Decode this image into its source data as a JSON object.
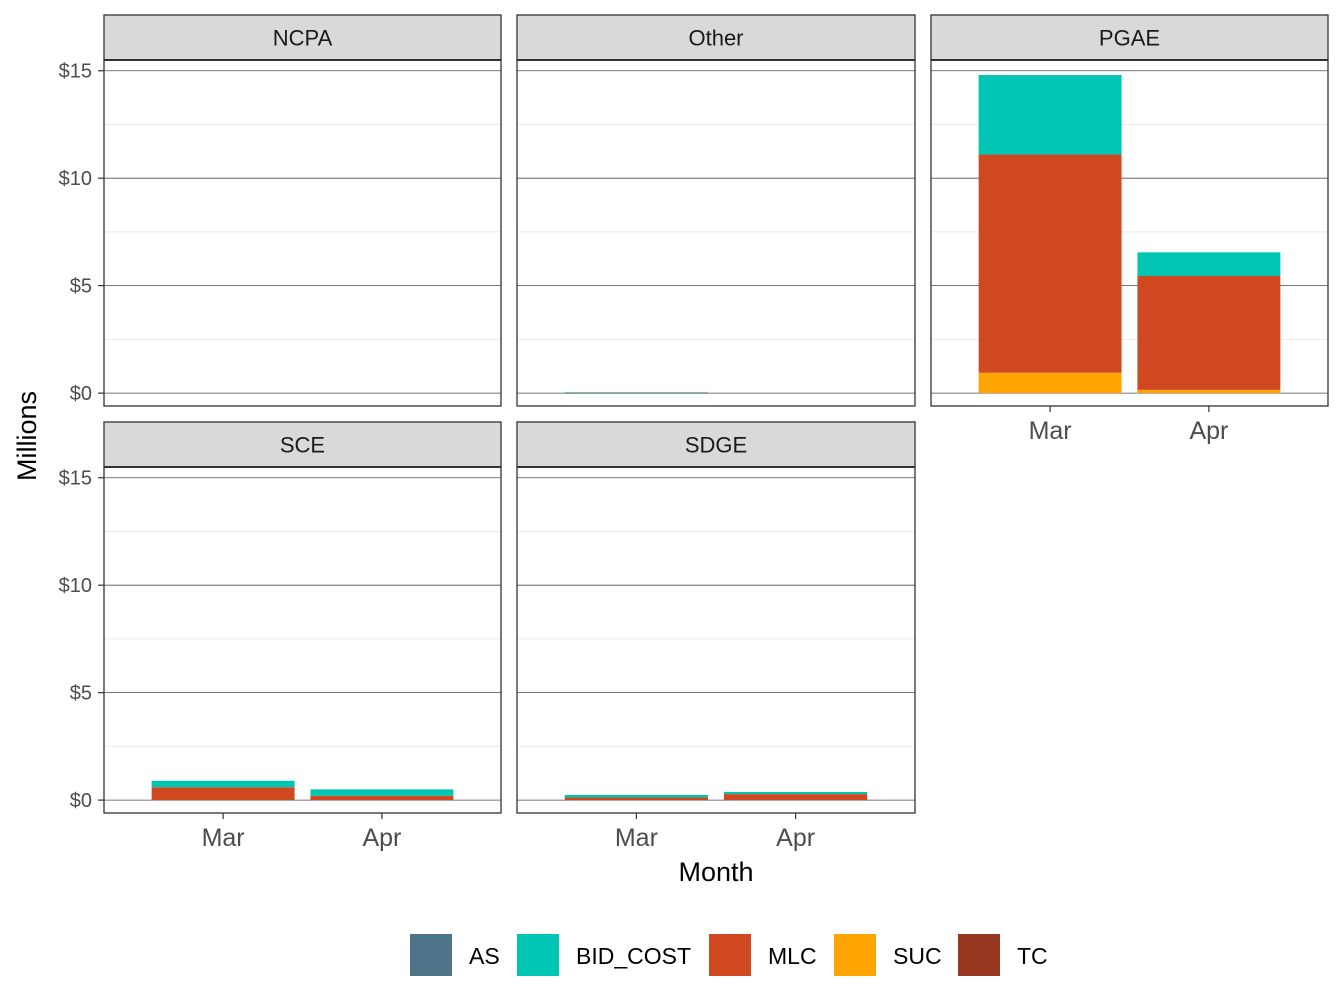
{
  "chart_data": {
    "type": "bar",
    "stacked": true,
    "faceted": true,
    "xlabel": "Month",
    "ylabel": "Millions",
    "ylim": [
      -0.6,
      15.5
    ],
    "yticks": [
      0,
      5,
      10,
      15
    ],
    "ytick_labels": [
      "$0",
      "$5",
      "$10",
      "$15"
    ],
    "categories": [
      "Mar",
      "Apr"
    ],
    "grid": true,
    "legend": {
      "position": "bottom",
      "entries": [
        {
          "name": "AS",
          "color": "#4e7489"
        },
        {
          "name": "BID_COST",
          "color": "#00c5b2"
        },
        {
          "name": "MLC",
          "color": "#d04820"
        },
        {
          "name": "SUC",
          "color": "#ffa400"
        },
        {
          "name": "TC",
          "color": "#993820"
        }
      ]
    },
    "stack_order": [
      "SUC",
      "TC",
      "MLC",
      "BID_COST",
      "AS"
    ],
    "panels": [
      {
        "name": "NCPA",
        "show_x_axis": false,
        "series": {
          "AS": [
            0,
            0
          ],
          "BID_COST": [
            0,
            0
          ],
          "MLC": [
            0,
            0
          ],
          "SUC": [
            0,
            0
          ],
          "TC": [
            0,
            0
          ]
        }
      },
      {
        "name": "Other",
        "show_x_axis": false,
        "series": {
          "AS": [
            0,
            0
          ],
          "BID_COST": [
            0.03,
            0
          ],
          "MLC": [
            0.01,
            0
          ],
          "SUC": [
            0,
            0
          ],
          "TC": [
            0,
            0
          ]
        }
      },
      {
        "name": "PGAE",
        "show_x_axis": true,
        "series": {
          "AS": [
            0,
            0
          ],
          "BID_COST": [
            3.7,
            1.1
          ],
          "MLC": [
            10.15,
            5.3
          ],
          "SUC": [
            0.95,
            0.15
          ],
          "TC": [
            0,
            0
          ]
        }
      },
      {
        "name": "SCE",
        "show_x_axis": true,
        "series": {
          "AS": [
            0,
            0
          ],
          "BID_COST": [
            0.3,
            0.3
          ],
          "MLC": [
            0.6,
            0.2
          ],
          "SUC": [
            0,
            0
          ],
          "TC": [
            0,
            0
          ]
        }
      },
      {
        "name": "SDGE",
        "show_x_axis": true,
        "series": {
          "AS": [
            0,
            0
          ],
          "BID_COST": [
            0.12,
            0.1
          ],
          "MLC": [
            0.12,
            0.28
          ],
          "SUC": [
            0,
            0
          ],
          "TC": [
            0,
            0
          ]
        }
      }
    ]
  }
}
